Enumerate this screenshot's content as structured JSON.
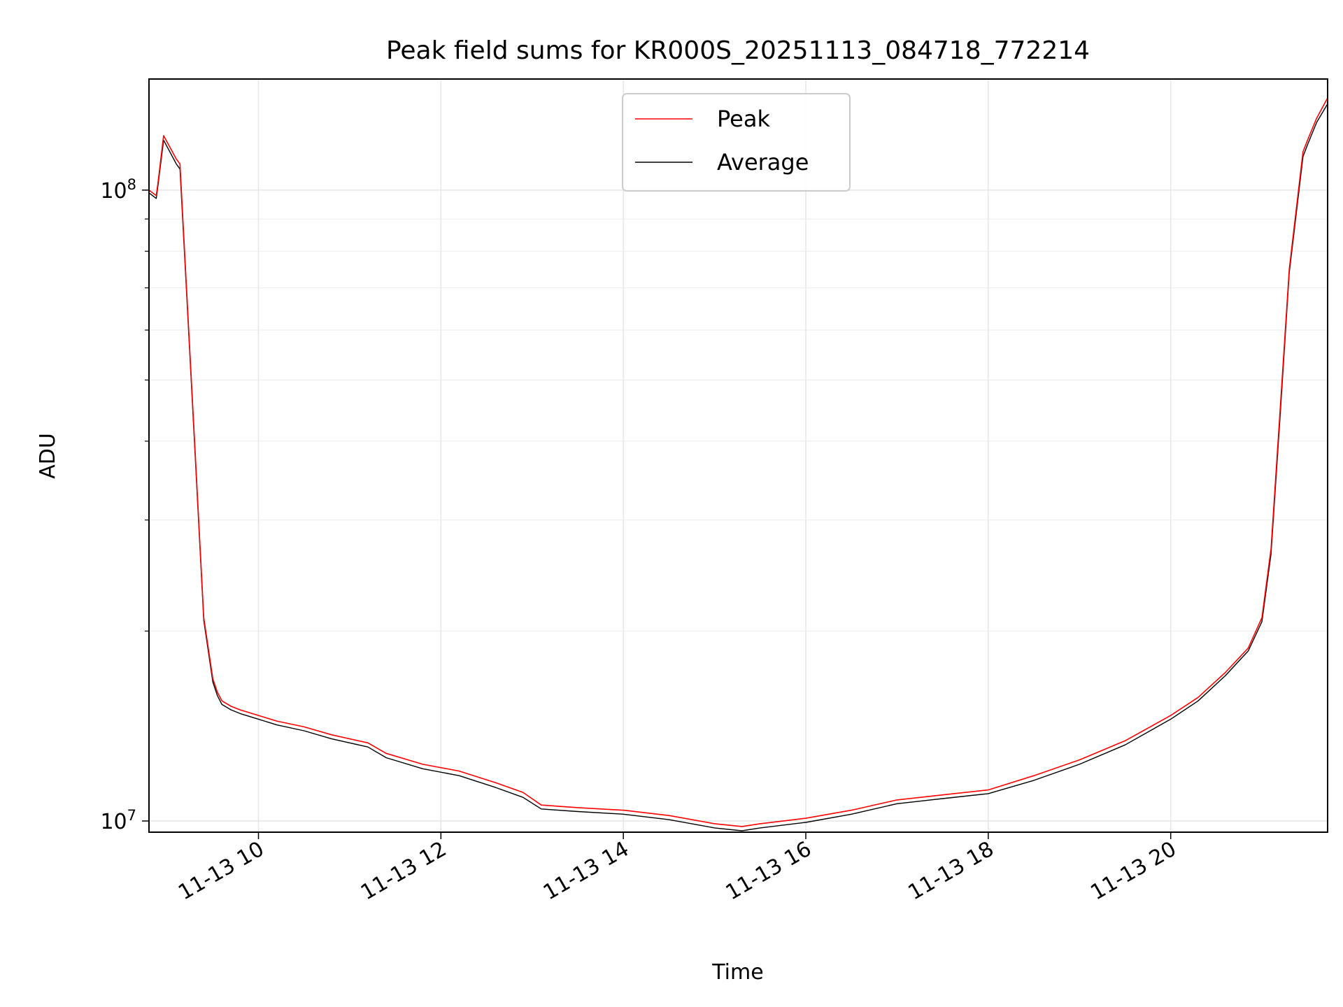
{
  "chart_data": {
    "type": "line",
    "title": "Peak field sums for KR000S_20251113_084718_772214",
    "xlabel": "Time",
    "ylabel": "ADU",
    "yscale": "log",
    "xlim_hours": [
      8.8,
      21.72
    ],
    "ylim": [
      9600000,
      150000000
    ],
    "grid": true,
    "legend_location": "upper center",
    "x_ticks": [
      {
        "hour": 10,
        "label": "11-13 10"
      },
      {
        "hour": 12,
        "label": "11-13 12"
      },
      {
        "hour": 14,
        "label": "11-13 14"
      },
      {
        "hour": 16,
        "label": "11-13 16"
      },
      {
        "hour": 18,
        "label": "11-13 18"
      },
      {
        "hour": 20,
        "label": "11-13 20"
      }
    ],
    "y_ticks": [
      {
        "value": 10000000,
        "base": "10",
        "exp": "7"
      },
      {
        "value": 100000000,
        "base": "10",
        "exp": "8"
      }
    ],
    "series": [
      {
        "name": "Peak",
        "color": "#ff0000",
        "x_hours": [
          8.8,
          8.88,
          8.9,
          8.96,
          9.1,
          9.14,
          9.2,
          9.3,
          9.4,
          9.5,
          9.55,
          9.6,
          9.7,
          9.8,
          10,
          10.2,
          10.5,
          10.8,
          11.2,
          11.4,
          11.8,
          12.2,
          12.6,
          12.9,
          13.1,
          13.5,
          14,
          14.5,
          15,
          15.3,
          15.5,
          16,
          16.5,
          17,
          17.5,
          18,
          18.5,
          19,
          19.5,
          20,
          20.3,
          20.6,
          20.85,
          21,
          21.1,
          21.2,
          21.3,
          21.45,
          21.5,
          21.6,
          21.72
        ],
        "values": [
          100000000,
          98000000,
          103000000,
          122000000,
          112000000,
          110000000,
          75000000,
          40000000,
          21000000,
          16800000,
          16000000,
          15500000,
          15200000,
          15000000,
          14700000,
          14400000,
          14100000,
          13700000,
          13300000,
          12800000,
          12300000,
          12000000,
          11500000,
          11100000,
          10600000,
          10500000,
          10400000,
          10200000,
          9900000,
          9800000,
          9900000,
          10100000,
          10400000,
          10800000,
          11000000,
          11200000,
          11800000,
          12500000,
          13400000,
          14700000,
          15700000,
          17200000,
          18800000,
          21000000,
          27000000,
          45000000,
          75000000,
          115000000,
          120000000,
          130000000,
          140000000
        ]
      },
      {
        "name": "Average",
        "color": "#000000",
        "x_hours": [
          8.8,
          8.88,
          8.9,
          8.96,
          9.1,
          9.14,
          9.2,
          9.3,
          9.4,
          9.5,
          9.55,
          9.6,
          9.7,
          9.8,
          10,
          10.2,
          10.5,
          10.8,
          11.2,
          11.4,
          11.8,
          12.2,
          12.6,
          12.9,
          13.1,
          13.5,
          14,
          14.5,
          15,
          15.3,
          15.5,
          16,
          16.5,
          17,
          17.5,
          18,
          18.5,
          19,
          19.5,
          20,
          20.3,
          20.6,
          20.85,
          21,
          21.1,
          21.2,
          21.3,
          21.45,
          21.5,
          21.6,
          21.72
        ],
        "values": [
          99000000,
          97000000,
          102000000,
          120000000,
          110000000,
          108000000,
          74000000,
          39500000,
          20800000,
          16600000,
          15800000,
          15300000,
          15000000,
          14800000,
          14500000,
          14200000,
          13900000,
          13500000,
          13100000,
          12600000,
          12100000,
          11800000,
          11300000,
          10900000,
          10450000,
          10350000,
          10250000,
          10050000,
          9750000,
          9650000,
          9750000,
          9950000,
          10250000,
          10650000,
          10850000,
          11050000,
          11600000,
          12300000,
          13200000,
          14500000,
          15500000,
          17000000,
          18600000,
          20700000,
          26500000,
          44000000,
          74000000,
          113000000,
          118000000,
          128000000,
          137000000
        ]
      }
    ]
  }
}
